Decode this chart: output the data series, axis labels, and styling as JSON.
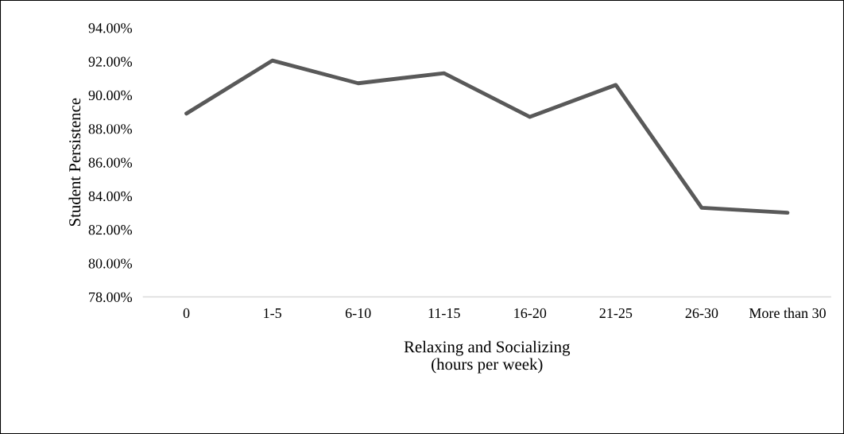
{
  "chart_data": {
    "type": "line",
    "xlabel": "Relaxing and Socializing\n(hours per week)",
    "ylabel": "Student Persistence",
    "categories": [
      "0",
      "1-5",
      "6-10",
      "11-15",
      "16-20",
      "21-25",
      "26-30",
      "More than 30"
    ],
    "series": [
      {
        "color": "#595959",
        "values": [
          88.9,
          92.05,
          90.7,
          91.3,
          88.7,
          90.6,
          83.3,
          83.0
        ]
      }
    ],
    "ylim": [
      78,
      94
    ],
    "yticks": [
      {
        "value": 78,
        "label": "78.00%"
      },
      {
        "value": 80,
        "label": "80.00%"
      },
      {
        "value": 82,
        "label": "82.00%"
      },
      {
        "value": 84,
        "label": "84.00%"
      },
      {
        "value": 86,
        "label": "86.00%"
      },
      {
        "value": 88,
        "label": "88.00%"
      },
      {
        "value": 90,
        "label": "90.00%"
      },
      {
        "value": 92,
        "label": "92.00%"
      },
      {
        "value": 94,
        "label": "94.00%"
      }
    ],
    "grid": false,
    "marker": "none",
    "line_style": "solid"
  }
}
